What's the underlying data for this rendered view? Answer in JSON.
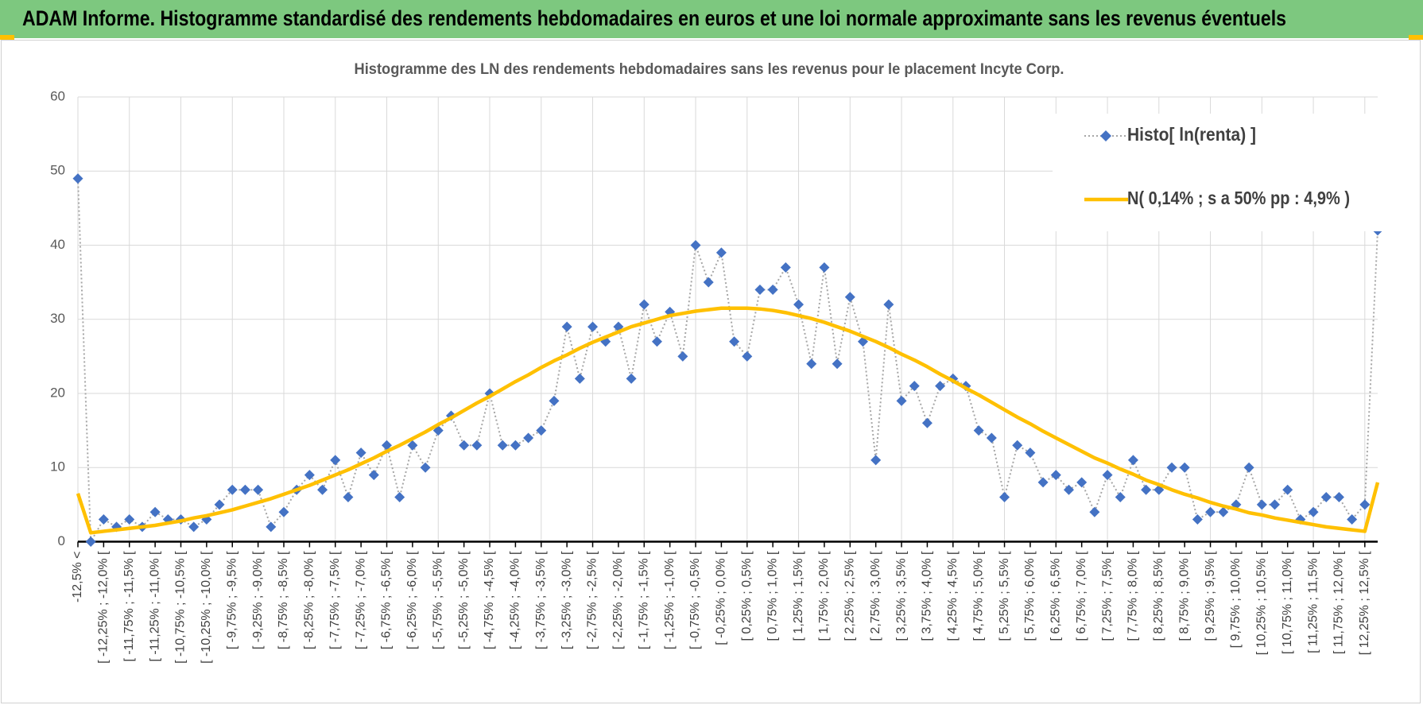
{
  "header": {
    "title": "ADAM Informe. Histogramme standardisé des rendements hebdomadaires en euros et une loi normale approximante sans les revenus éventuels"
  },
  "chart_data": {
    "type": "line",
    "title": "Histogramme des LN des rendements hebdomadaires sans les revenus pour le placement Incyte Corp.",
    "categories": [
      "-12,5% <",
      null,
      "[ -12,25% ; -12,0% [",
      null,
      "[ -11,75% ; -11,5% [",
      null,
      "[ -11,25% ; -11,0% [",
      null,
      "[ -10,75% ; -10,5% [",
      null,
      "[ -10,25% ; -10,0% [",
      null,
      "[ -9,75% ; -9,5% [",
      null,
      "[ -9,25% ; -9,0% [",
      null,
      "[ -8,75% ; -8,5% [",
      null,
      "[ -8,25% ; -8,0% [",
      null,
      "[ -7,75% ; -7,5% [",
      null,
      "[ -7,25% ; -7,0% [",
      null,
      "[ -6,75% ; -6,5% [",
      null,
      "[ -6,25% ; -6,0% [",
      null,
      "[ -5,75% ; -5,5% [",
      null,
      "[ -5,25% ; -5,0% [",
      null,
      "[ -4,75% ; -4,5% [",
      null,
      "[ -4,25% ; -4,0% [",
      null,
      "[ -3,75% ; -3,5% [",
      null,
      "[ -3,25% ; -3,0% [",
      null,
      "[ -2,75% ; -2,5% [",
      null,
      "[ -2,25% ; -2,0% [",
      null,
      "[ -1,75% ; -1,5% [",
      null,
      "[ -1,25% ; -1,0% [",
      null,
      "[ -0,75% ; -0,5% [",
      null,
      "[ -0,25% ; 0,0% [",
      null,
      "[ 0,25% ; 0,5% [",
      null,
      "[ 0,75% ; 1,0% [",
      null,
      "[ 1,25% ; 1,5% [",
      null,
      "[ 1,75% ; 2,0% [",
      null,
      "[ 2,25% ; 2,5% [",
      null,
      "[ 2,75% ; 3,0% [",
      null,
      "[ 3,25% ; 3,5% [",
      null,
      "[ 3,75% ; 4,0% [",
      null,
      "[ 4,25% ; 4,5% [",
      null,
      "[ 4,75% ; 5,0% [",
      null,
      "[ 5,25% ; 5,5% [",
      null,
      "[ 5,75% ; 6,0% [",
      null,
      "[ 6,25% ; 6,5% [",
      null,
      "[ 6,75% ; 7,0% [",
      null,
      "[ 7,25% ; 7,5% [",
      null,
      "[ 7,75% ; 8,0% [",
      null,
      "[ 8,25% ; 8,5% [",
      null,
      "[ 8,75% ; 9,0% [",
      null,
      "[ 9,25% ; 9,5% [",
      null,
      "[ 9,75% ; 10,0% [",
      null,
      "[ 10,25% ; 10,5% [",
      null,
      "[ 10,75% ; 11,0% [",
      null,
      "[ 11,25% ; 11,5% [",
      null,
      "[ 11,75% ; 12,0% [",
      null,
      "[ 12,25% ; 12,5% [",
      null
    ],
    "series": [
      {
        "name": "Histo[ ln(renta) ]",
        "color": "#4472c4",
        "line_color": "#a6a6a6",
        "marker": "diamond",
        "linestyle": "dotted",
        "values": [
          49,
          0,
          3,
          2,
          3,
          2,
          4,
          3,
          3,
          2,
          3,
          5,
          7,
          7,
          7,
          2,
          4,
          7,
          9,
          7,
          11,
          6,
          12,
          9,
          13,
          6,
          13,
          10,
          15,
          17,
          13,
          13,
          20,
          13,
          13,
          14,
          15,
          19,
          29,
          22,
          29,
          27,
          29,
          22,
          32,
          27,
          31,
          25,
          40,
          35,
          39,
          27,
          25,
          34,
          34,
          37,
          32,
          24,
          37,
          24,
          33,
          27,
          11,
          32,
          19,
          21,
          16,
          21,
          22,
          21,
          15,
          14,
          6,
          13,
          12,
          8,
          9,
          7,
          8,
          4,
          9,
          6,
          11,
          7,
          7,
          10,
          10,
          3,
          4,
          4,
          5,
          10,
          5,
          5,
          7,
          3,
          4,
          6,
          6,
          3,
          5,
          42
        ]
      },
      {
        "name": "N( 0,14% ; s a 50% pp : 4,9% )",
        "color": "#ffc000",
        "line_color": "#ffc000",
        "marker": "none",
        "linestyle": "solid",
        "values": [
          6.5,
          1.2,
          1.4,
          1.6,
          1.8,
          2.0,
          2.2,
          2.5,
          2.8,
          3.2,
          3.5,
          3.9,
          4.3,
          4.8,
          5.3,
          5.8,
          6.4,
          7.0,
          7.6,
          8.3,
          9.0,
          9.7,
          10.5,
          11.3,
          12.2,
          13.0,
          13.9,
          14.8,
          15.8,
          16.7,
          17.7,
          18.7,
          19.6,
          20.6,
          21.6,
          22.5,
          23.5,
          24.4,
          25.2,
          26.1,
          26.9,
          27.6,
          28.3,
          29.0,
          29.5,
          30.0,
          30.5,
          30.8,
          31.1,
          31.3,
          31.5,
          31.5,
          31.5,
          31.4,
          31.2,
          30.9,
          30.5,
          30.1,
          29.6,
          29.0,
          28.4,
          27.7,
          27.0,
          26.2,
          25.3,
          24.5,
          23.6,
          22.6,
          21.7,
          20.7,
          19.8,
          18.8,
          17.8,
          16.8,
          15.9,
          14.9,
          14.0,
          13.1,
          12.2,
          11.3,
          10.6,
          9.8,
          9.1,
          8.3,
          7.7,
          7.0,
          6.4,
          5.9,
          5.3,
          4.8,
          4.4,
          3.9,
          3.6,
          3.2,
          2.9,
          2.6,
          2.3,
          2.0,
          1.8,
          1.6,
          1.4,
          8.0
        ]
      }
    ],
    "ylim": [
      0,
      60
    ],
    "yticks": [
      0,
      10,
      20,
      30,
      40,
      50,
      60
    ],
    "grid": true,
    "legend": "upper right"
  }
}
